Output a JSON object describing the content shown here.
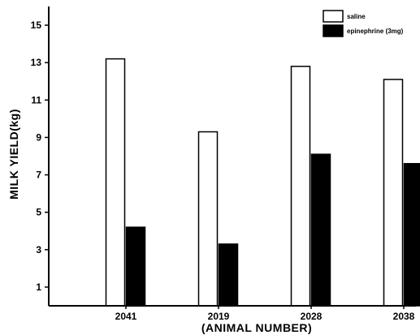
{
  "chart_data": {
    "type": "bar",
    "title": "",
    "xlabel": "(ANIMAL NUMBER)",
    "ylabel": "MILK YIELD(kg)",
    "ylim": [
      0,
      16
    ],
    "yticks": [
      1,
      3,
      5,
      7,
      9,
      11,
      13,
      15
    ],
    "categories": [
      "2041",
      "2019",
      "2028",
      "2038"
    ],
    "series": [
      {
        "name": "saline",
        "color": "#ffffff",
        "values": [
          13.2,
          9.3,
          12.8,
          12.1
        ]
      },
      {
        "name": "epinephrine (3mg)",
        "color": "#000000",
        "values": [
          4.2,
          3.3,
          8.1,
          7.6
        ]
      }
    ],
    "legend": "top-right",
    "grid": false
  }
}
